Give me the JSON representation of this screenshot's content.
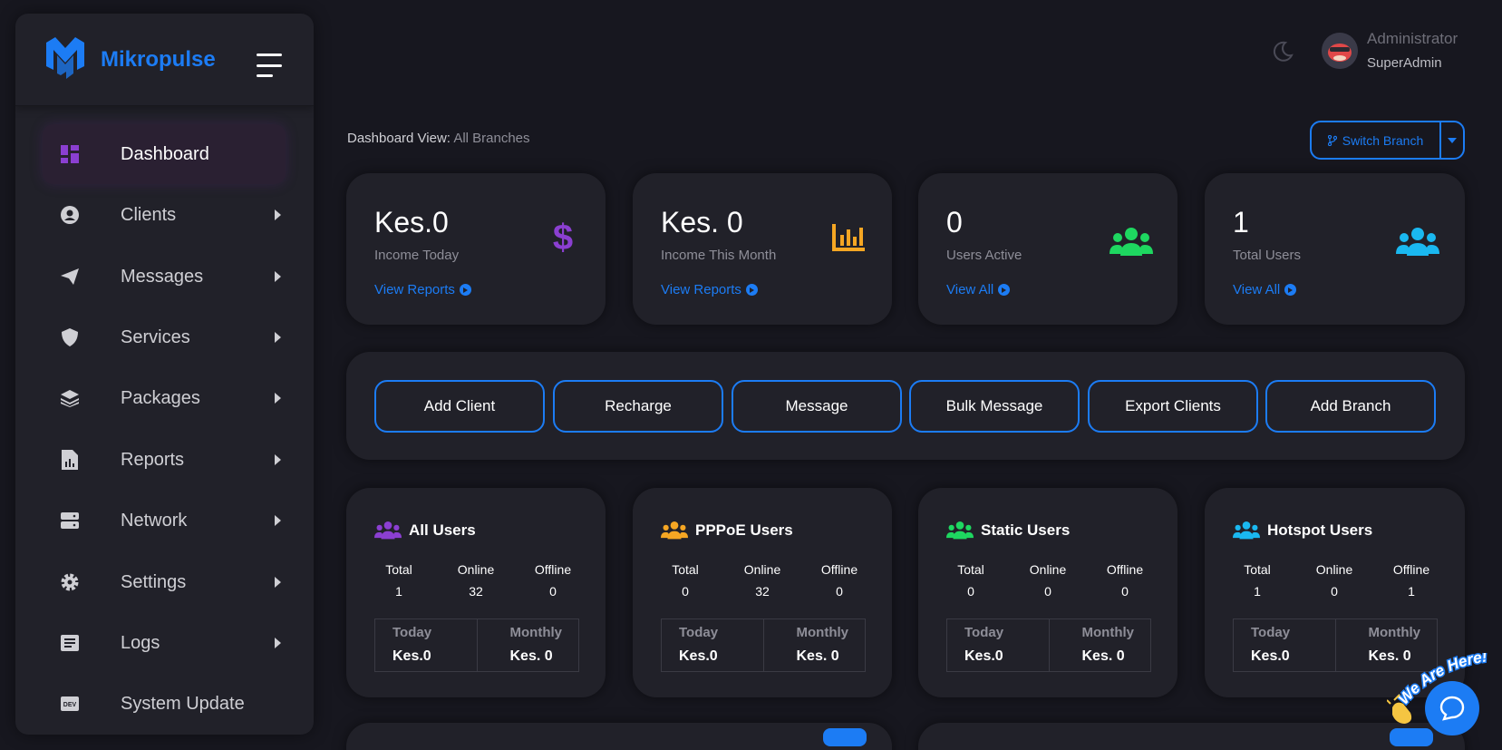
{
  "brand": {
    "name": "Mikropulse"
  },
  "sidebar": {
    "items": [
      {
        "label": "Dashboard",
        "icon": "dashboard-icon",
        "active": true,
        "submenu": false
      },
      {
        "label": "Clients",
        "icon": "user-circle-icon",
        "submenu": true
      },
      {
        "label": "Messages",
        "icon": "paper-plane-icon",
        "submenu": true
      },
      {
        "label": "Services",
        "icon": "shield-icon",
        "submenu": true
      },
      {
        "label": "Packages",
        "icon": "layers-icon",
        "submenu": true
      },
      {
        "label": "Reports",
        "icon": "report-file-icon",
        "submenu": true
      },
      {
        "label": "Network",
        "icon": "server-icon",
        "submenu": true
      },
      {
        "label": "Settings",
        "icon": "gear-icon",
        "submenu": true
      },
      {
        "label": "Logs",
        "icon": "log-list-icon",
        "submenu": true
      },
      {
        "label": "System Update",
        "icon": "dev-icon",
        "submenu": false
      }
    ]
  },
  "header": {
    "user_role": "Administrator",
    "user_name": "SuperAdmin"
  },
  "dashboard_view": {
    "label": "Dashboard View:",
    "value": "All Branches"
  },
  "switch_branch": {
    "label": "Switch Branch"
  },
  "stats": [
    {
      "value": "Kes.0",
      "label": "Income Today",
      "link": "View Reports",
      "icon": "dollar-icon",
      "color": "#8b3fd1"
    },
    {
      "value": "Kes. 0",
      "label": "Income This Month",
      "link": "View Reports",
      "icon": "bar-chart-icon",
      "color": "#f5a623"
    },
    {
      "value": "0",
      "label": "Users Active",
      "link": "View All",
      "icon": "users-icon",
      "color": "#1ed760"
    },
    {
      "value": "1",
      "label": "Total Users",
      "link": "View All",
      "icon": "users-icon",
      "color": "#1ab8f0"
    }
  ],
  "actions": [
    "Add Client",
    "Recharge",
    "Message",
    "Bulk Message",
    "Export Clients",
    "Add Branch"
  ],
  "user_groups": [
    {
      "title": "All Users",
      "color": "#8b3fd1",
      "total": "1",
      "online": "32",
      "offline": "0",
      "today": "Kes.0",
      "monthly": "Kes. 0"
    },
    {
      "title": "PPPoE Users",
      "color": "#f5a623",
      "total": "0",
      "online": "32",
      "offline": "0",
      "today": "Kes.0",
      "monthly": "Kes. 0"
    },
    {
      "title": "Static Users",
      "color": "#1ed760",
      "total": "0",
      "online": "0",
      "offline": "0",
      "today": "Kes.0",
      "monthly": "Kes. 0"
    },
    {
      "title": "Hotspot Users",
      "color": "#1ab8f0",
      "total": "1",
      "online": "0",
      "offline": "1",
      "today": "Kes.0",
      "monthly": "Kes. 0"
    }
  ],
  "labels": {
    "total": "Total",
    "online": "Online",
    "offline": "Offline",
    "today": "Today",
    "monthly": "Monthly"
  },
  "chat": {
    "banner": "We Are Here!",
    "accent": "#1c7cf4"
  }
}
